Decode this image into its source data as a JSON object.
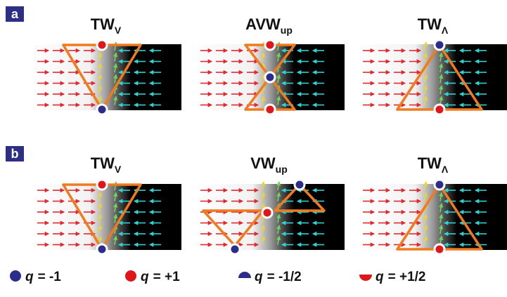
{
  "rows": [
    {
      "label": "a",
      "panels": [
        {
          "title": "TW",
          "sub": "V"
        },
        {
          "title": "AVW",
          "sub": "up"
        },
        {
          "title": "TW",
          "sub": "Λ"
        }
      ]
    },
    {
      "label": "b",
      "panels": [
        {
          "title": "TW",
          "sub": "V"
        },
        {
          "title": "VW",
          "sub": "up"
        },
        {
          "title": "TW",
          "sub": "Λ"
        }
      ]
    }
  ],
  "legend": [
    {
      "symbol": "q",
      "text": "= -1"
    },
    {
      "symbol": "q",
      "text": "= +1"
    },
    {
      "symbol": "q",
      "text": "= -1/2"
    },
    {
      "symbol": "q",
      "text": "= +1/2"
    }
  ]
}
